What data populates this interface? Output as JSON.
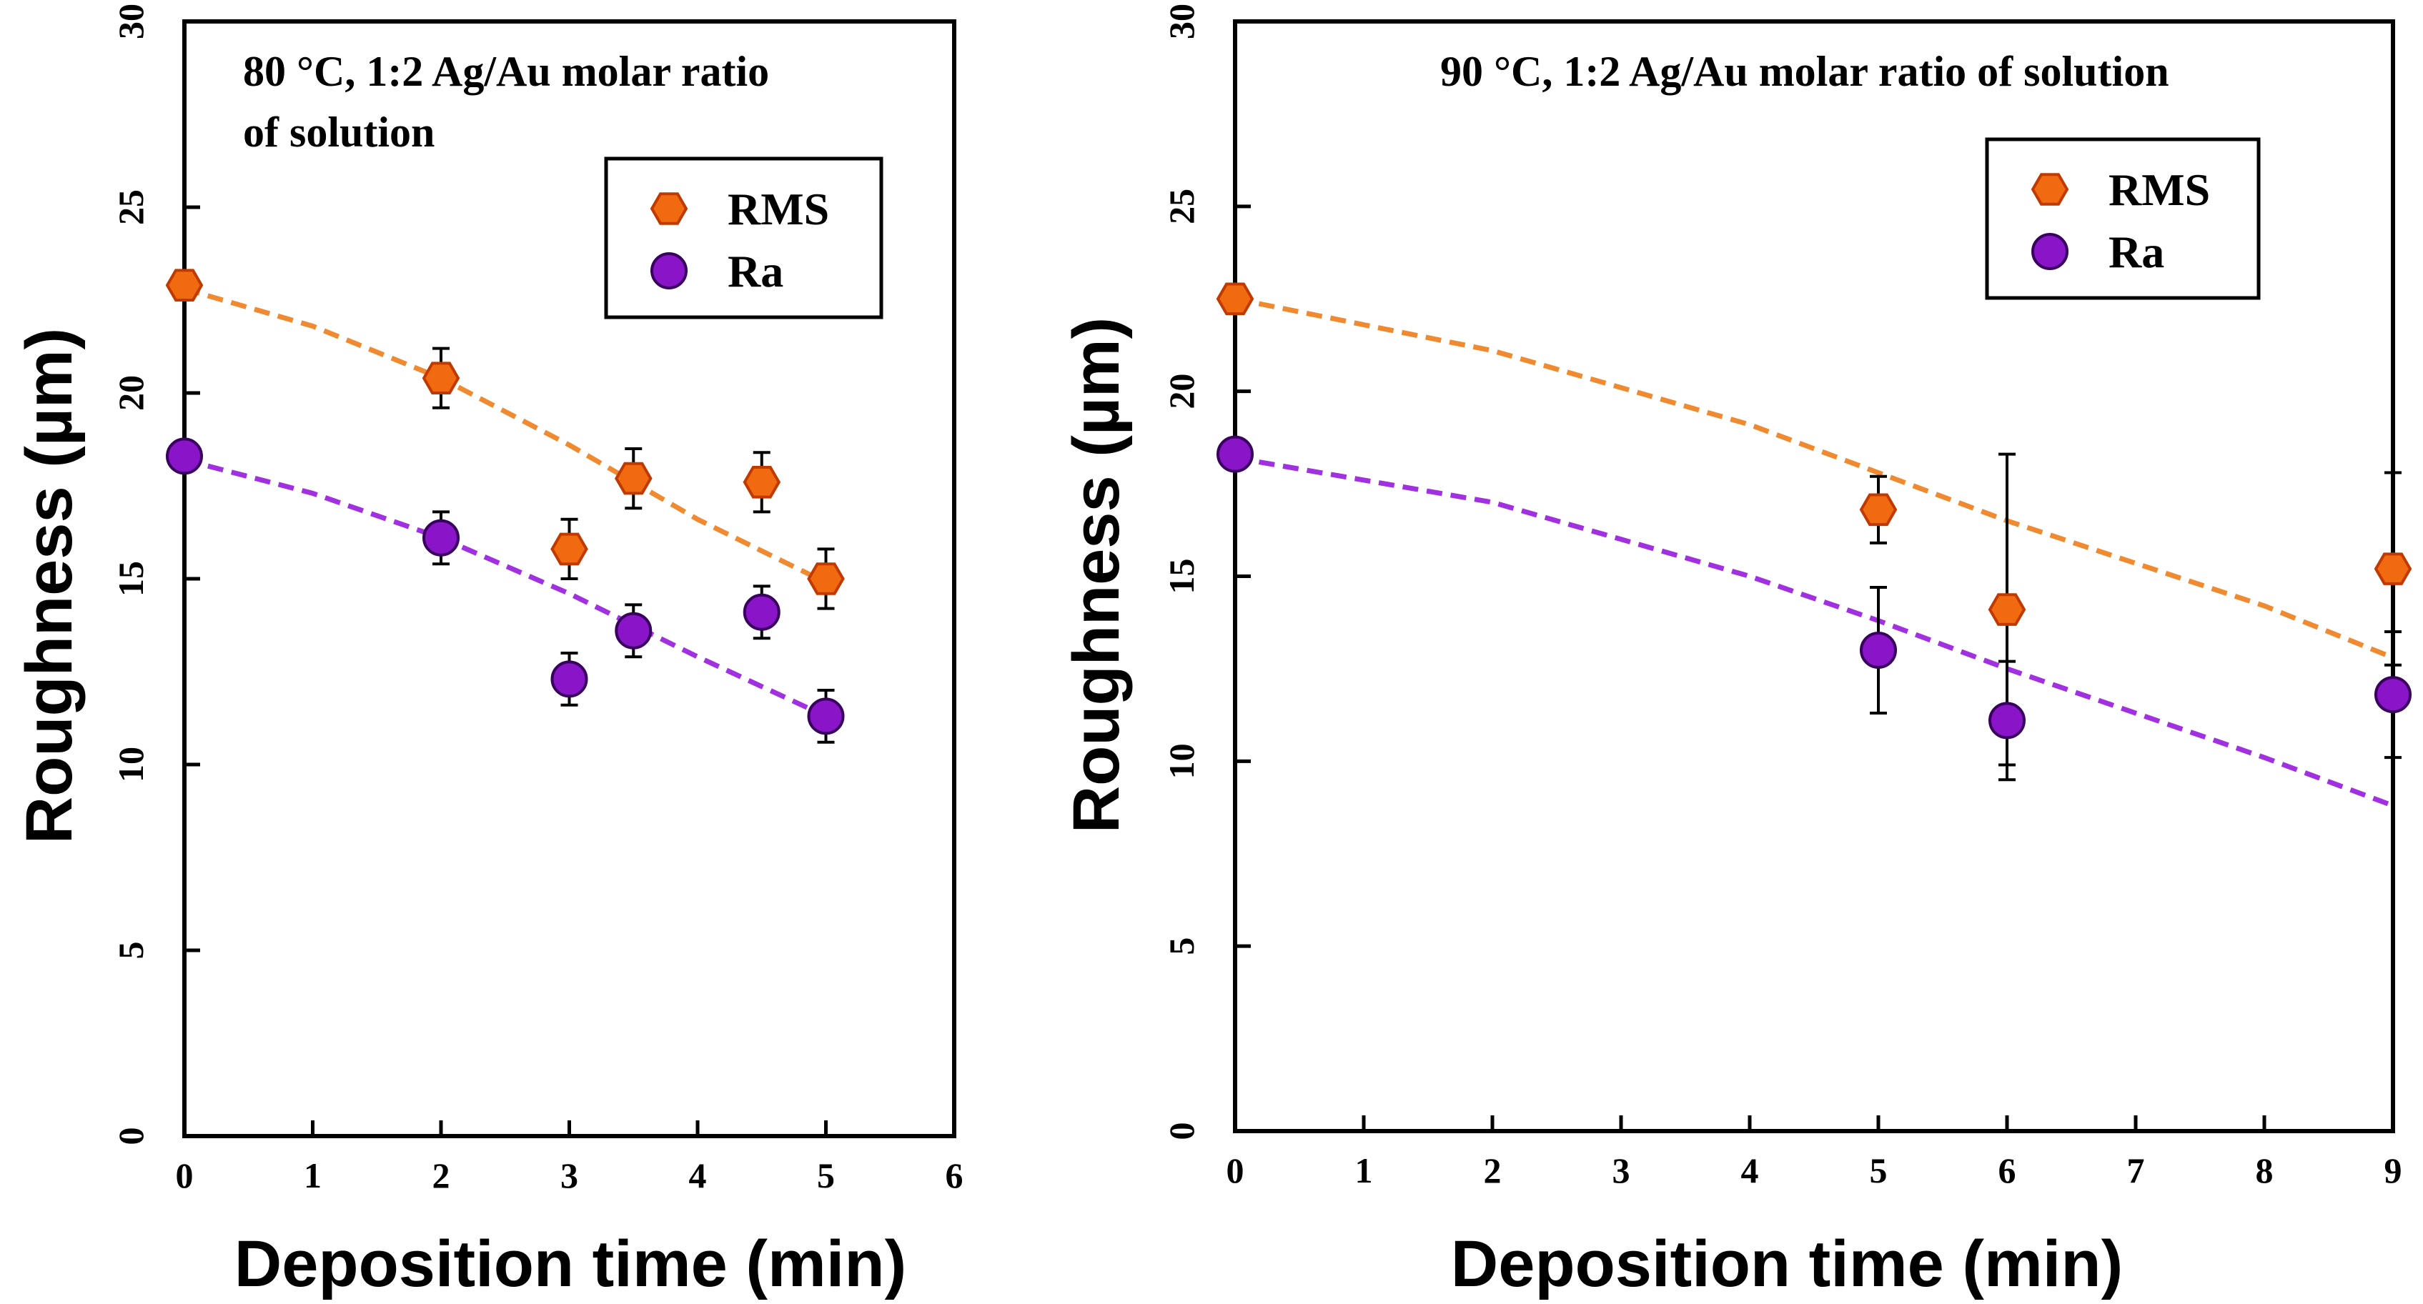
{
  "colors": {
    "rms": "#f26a10",
    "rms_edge": "#c03a00",
    "ra": "#8a14c8",
    "ra_edge": "#3a0060",
    "rms_fit": "#f08a30",
    "ra_fit": "#a030e0"
  },
  "chart_data": [
    {
      "type": "scatter",
      "title_lines": [
        "80 °C, 1:2 Ag/Au molar ratio",
        "of solution"
      ],
      "xlabel": "Deposition  time (min)",
      "ylabel": "Roughness (µm)",
      "xlim": [
        0,
        6
      ],
      "ylim": [
        0,
        30
      ],
      "xticks": [
        0,
        1,
        2,
        3,
        4,
        5,
        6
      ],
      "yticks": [
        0,
        5,
        10,
        15,
        20,
        25,
        30
      ],
      "legend_position": "top-right",
      "series": [
        {
          "name": "RMS",
          "marker": "hexagon",
          "x": [
            0,
            2,
            3,
            3.5,
            4.5,
            5
          ],
          "y": [
            22.9,
            20.4,
            15.8,
            17.7,
            17.6,
            15.0
          ],
          "err": [
            0.3,
            0.8,
            0.8,
            0.8,
            0.8,
            0.8
          ]
        },
        {
          "name": "Ra",
          "marker": "circle",
          "x": [
            0,
            2,
            3,
            3.5,
            4.5,
            5
          ],
          "y": [
            18.3,
            16.1,
            12.3,
            13.6,
            14.1,
            11.3
          ],
          "err": [
            0.3,
            0.7,
            0.7,
            0.7,
            0.7,
            0.7
          ]
        }
      ],
      "fits": [
        {
          "series": "RMS",
          "x": [
            0,
            1,
            2,
            3,
            3.5,
            4,
            5
          ],
          "y": [
            22.8,
            21.8,
            20.4,
            18.6,
            17.6,
            16.6,
            14.9
          ]
        },
        {
          "series": "Ra",
          "x": [
            0,
            1,
            2,
            3,
            4,
            5
          ],
          "y": [
            18.2,
            17.3,
            16.1,
            14.6,
            12.9,
            11.3
          ]
        }
      ]
    },
    {
      "type": "scatter",
      "title_lines": [
        "90 °C, 1:2 Ag/Au molar ratio of solution"
      ],
      "xlabel": "Deposition  time (min)",
      "ylabel": "Roughness (µm)",
      "xlim": [
        0,
        9
      ],
      "ylim": [
        0,
        30
      ],
      "xticks": [
        0,
        1,
        2,
        3,
        4,
        5,
        6,
        7,
        8,
        9
      ],
      "yticks": [
        0,
        5,
        10,
        15,
        20,
        25,
        30
      ],
      "legend_position": "top-right",
      "series": [
        {
          "name": "RMS",
          "marker": "hexagon",
          "x": [
            0,
            5,
            6,
            9
          ],
          "y": [
            22.5,
            16.8,
            14.1,
            15.2
          ],
          "err": [
            0.3,
            0.9,
            4.2,
            2.6
          ]
        },
        {
          "name": "Ra",
          "marker": "circle",
          "x": [
            0,
            5,
            6,
            9
          ],
          "y": [
            18.3,
            13.0,
            11.1,
            11.8
          ],
          "err": [
            0.3,
            1.7,
            1.6,
            1.7
          ]
        }
      ],
      "fits": [
        {
          "series": "RMS",
          "x": [
            0,
            2,
            4,
            5,
            6,
            8,
            9
          ],
          "y": [
            22.5,
            21.1,
            19.1,
            17.8,
            16.5,
            14.2,
            12.8
          ]
        },
        {
          "series": "Ra",
          "x": [
            0,
            2,
            4,
            5,
            6,
            8,
            9
          ],
          "y": [
            18.2,
            17.0,
            15.0,
            13.8,
            12.5,
            10.1,
            8.8
          ]
        }
      ]
    }
  ]
}
